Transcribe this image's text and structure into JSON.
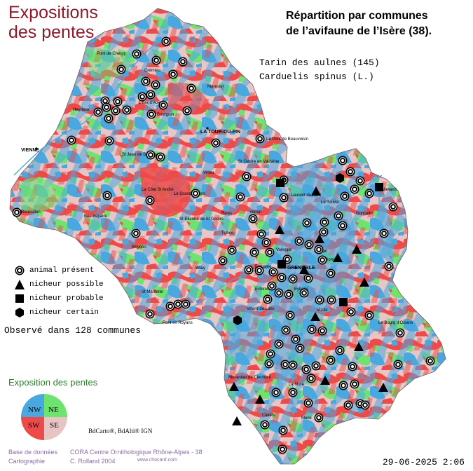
{
  "map_title_line1": "Expositions",
  "map_title_line2": "des pentes",
  "repartition_line1": "Répartition par communes",
  "repartition_line2": "de l’avifaune de l’Isère (38).",
  "species_line1": "Tarin des aulnes  (145)",
  "species_line2": "Carduelis spinus (L.)",
  "legend": [
    {
      "symbol": "animal-present",
      "label": "animal présent"
    },
    {
      "symbol": "nicheur-possible",
      "label": "nicheur possible"
    },
    {
      "symbol": "nicheur-probable",
      "label": "nicheur probable"
    },
    {
      "symbol": "nicheur-certain",
      "label": "nicheur certain"
    }
  ],
  "observed": "Observé dans 128 communes",
  "exposition_title": "Exposition des pentes",
  "compass": {
    "nw": "NW",
    "ne": "NE",
    "sw": "SW",
    "se": "SE",
    "colors": {
      "nw": "#4aa8e0",
      "ne": "#6fe36f",
      "sw": "#ee4a4a",
      "se": "#e8c4c4"
    }
  },
  "bdcarto": "BdCarto®, BdAlti® IGN",
  "credits": {
    "base_label": "Base de données",
    "base_value": "CORA Centre Ornithologique Rhône-Alpes - 38",
    "carto_label": "Cartographie",
    "carto_value": "C. Rolland 2004",
    "website": "www.chocard.com"
  },
  "timestamp": "29-06-2025 2:06",
  "place_names": {
    "vienne": "VIENNE",
    "la_tour_du_pin": "LA TOUR-DU-PIN",
    "grenoble": "GRENOBLE",
    "le_pont_de_beauvoisin": "Le Pont de Beauvoisin",
    "cremieu": "Crémieu",
    "morestel": "Morestel",
    "bourgoin": "Bourgoin",
    "heyrieux": "Heyrieux",
    "roussillon": "Roussillon",
    "beaurepaire": "Beaurepaire",
    "la_cote_st_andre": "La Côte St André",
    "le_grand_lemps": "Le Grand Lemps",
    "virieu": "Virieu",
    "st_geoire": "St Geoire en Valdaine",
    "st_laurent_du_pont": "St Laurent du Pont",
    "le_touvet": "Le Touvet",
    "goncelin": "Goncelin",
    "allevard": "Allevard",
    "rives": "Rives",
    "voiron": "Voiron",
    "tullins": "Tullins",
    "roybon": "Roybon",
    "st_marcellin": "St Marcellin",
    "pont_en_royans": "Pont en Royans",
    "vinay": "Vinay",
    "villard_de_lans": "Villard de Lans",
    "vizille": "Vizille",
    "le_bourg_doisans": "Le Bourg d'Oisans",
    "la_mure": "La Mure",
    "monestier_de_clermont": "Monestier de Clermont",
    "mens": "Mens",
    "clelles": "Clelles",
    "fontaine": "Fontaine",
    "eybens": "Eybens",
    "echirolles": "Echirolles",
    "domene": "Domène",
    "meylan": "Meylan",
    "voreppe": "Voreppe",
    "st_etienne_de_st_geoirs": "St Etienne de St Geoirs",
    "st_jean_de_bournay": "St Jean de Bournay",
    "pont_de_cheruy": "Pont de Chéruy",
    "lisle_dabeau": "L'Isle d'Abeau"
  }
}
